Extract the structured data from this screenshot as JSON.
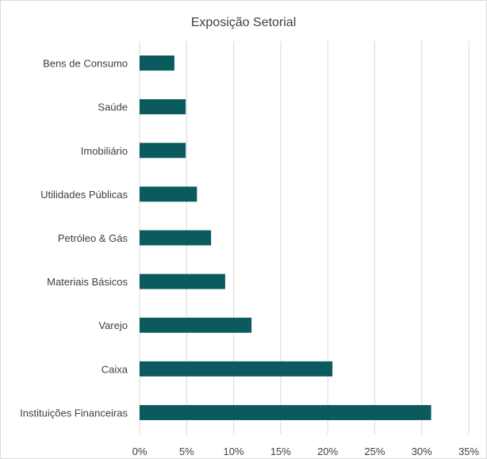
{
  "chart_data": {
    "type": "bar",
    "orientation": "horizontal",
    "title": "Exposição Setorial",
    "xlabel": "",
    "ylabel": "",
    "categories": [
      "Bens de Consumo",
      "Saúde",
      "Imobiliário",
      "Utilidades Públicas",
      "Petróleo & Gás",
      "Materiais Básicos",
      "Varejo",
      "Caixa",
      "Instituições Financeiras"
    ],
    "values": [
      3.7,
      4.9,
      4.9,
      6.1,
      7.6,
      9.1,
      11.9,
      20.5,
      31.0
    ],
    "xlim": [
      0,
      35
    ],
    "xticks": [
      "0%",
      "5%",
      "10%",
      "15%",
      "20%",
      "25%",
      "30%",
      "35%"
    ],
    "grid": "vertical",
    "legend": "none",
    "bar_color": "#0a5a5e",
    "grid_color": "#d9d9d9"
  }
}
